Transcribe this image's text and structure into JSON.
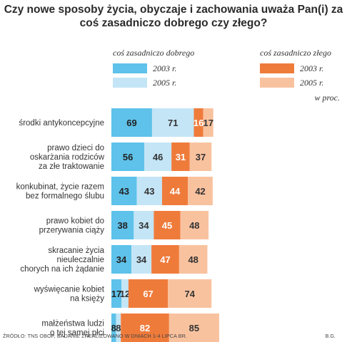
{
  "chart_data": {
    "type": "bar",
    "title": "Czy nowe sposoby życia, obyczaje i zachowania uważa Pan(i) za coś zasadniczo dobrego czy złego?",
    "groups": [
      "coś zasadniczo dobrego",
      "coś zasadniczo złego"
    ],
    "unit": "w proc.",
    "categories": [
      "środki antykoncepcyjne",
      "prawo dzieci do oskarżania rodziców za złe traktowanie",
      "konkubinat, życie razem bez formalnego ślubu",
      "prawo kobiet do przerywania ciąży",
      "skracanie życia nieuleczalnie chorych na ich żądanie",
      "wyświęcanie kobiet na księży",
      "małżeństwa ludzi o tej samej płci"
    ],
    "category_lines": [
      [
        "środki antykoncepcyjne"
      ],
      [
        "prawo dzieci do",
        "oskarżania rodziców",
        "za złe traktowanie"
      ],
      [
        "konkubinat, życie razem",
        "bez formalnego ślubu"
      ],
      [
        "prawo kobiet do",
        "przerywania ciąży"
      ],
      [
        "skracanie życia",
        "nieuleczalnie",
        "chorych na ich żądanie"
      ],
      [
        "wyświęcanie kobiet",
        "na księży"
      ],
      [
        "małżeństwa ludzi",
        "o tej samej płci"
      ]
    ],
    "series": [
      {
        "name": "2003 r.",
        "group": "coś zasadniczo dobrego",
        "color": "#5ec2ea",
        "values": [
          69,
          56,
          43,
          38,
          34,
          17,
          8
        ]
      },
      {
        "name": "2005 r.",
        "group": "coś zasadniczo dobrego",
        "color": "#c4e5f6",
        "values": [
          71,
          46,
          43,
          34,
          34,
          12,
          8
        ]
      },
      {
        "name": "2003 r.",
        "group": "coś zasadniczo złego",
        "color": "#ef7b3b",
        "values": [
          16,
          31,
          44,
          45,
          47,
          67,
          82
        ]
      },
      {
        "name": "2005 r.",
        "group": "coś zasadniczo złego",
        "color": "#f9c29f",
        "values": [
          17,
          37,
          42,
          48,
          48,
          74,
          85
        ]
      }
    ],
    "xlabel": "",
    "ylabel": "",
    "grid": false
  },
  "source": "ŹRÓDŁO: TNS OBOP, BADANIE ZREALIZOWANO W DNIACH 1-4 LIPCA BR.",
  "credit": "B.G."
}
